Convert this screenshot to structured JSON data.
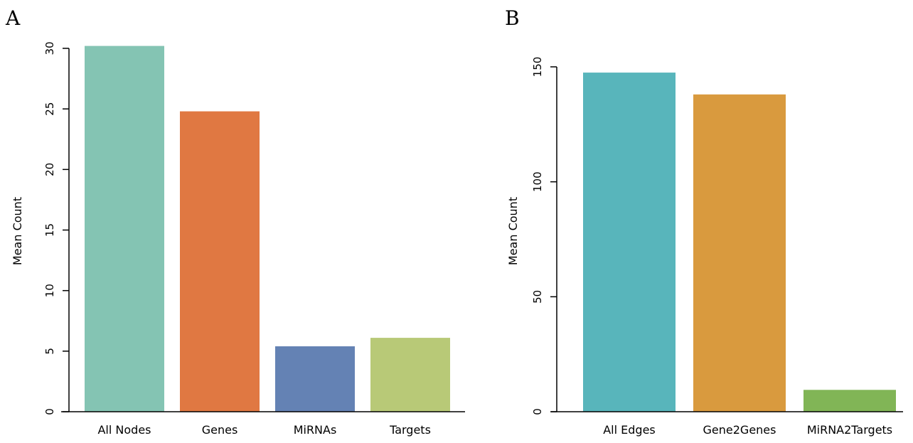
{
  "chart_data": [
    {
      "panel": "A",
      "type": "bar",
      "title": "",
      "xlabel": "",
      "ylabel": "Mean Count",
      "ylim": [
        0,
        30
      ],
      "yticks": [
        0,
        5,
        10,
        15,
        20,
        25,
        30
      ],
      "categories": [
        "All Nodes",
        "Genes",
        "MiRNAs",
        "Targets"
      ],
      "values": [
        30.2,
        24.8,
        5.4,
        6.1
      ],
      "colors": [
        "#84c4b3",
        "#e07842",
        "#6482b4",
        "#b8c977"
      ],
      "grid": false,
      "legend": "none"
    },
    {
      "panel": "B",
      "type": "bar",
      "title": "",
      "xlabel": "",
      "ylabel": "Mean Count",
      "ylim": [
        0,
        150
      ],
      "yticks": [
        0,
        50,
        100,
        150
      ],
      "categories": [
        "All Edges",
        "Gene2Genes",
        "MiRNA2Targets"
      ],
      "values": [
        147.5,
        138,
        9.5
      ],
      "colors": [
        "#58b5bb",
        "#d99a3e",
        "#81b556"
      ],
      "grid": false,
      "legend": "none"
    }
  ]
}
